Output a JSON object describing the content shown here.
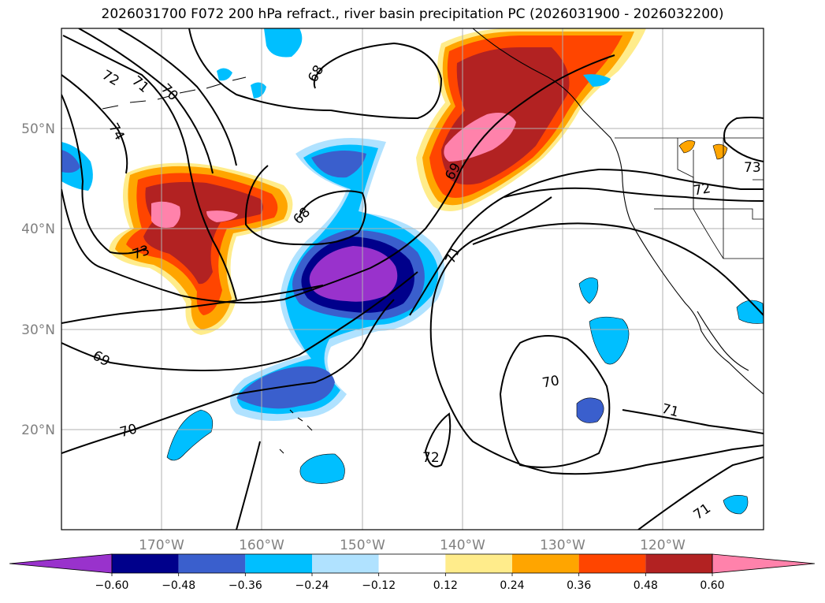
{
  "title": "2026031700 F072 200 hPa refract., river basin precipitation PC (2026031900 - 2026032200)",
  "map": {
    "lon_ticks": [
      "170°W",
      "160°W",
      "150°W",
      "140°W",
      "130°W",
      "120°W"
    ],
    "lat_ticks": [
      "50°N",
      "40°N",
      "30°N",
      "20°N"
    ],
    "contour_labels": [
      "72",
      "71",
      "70",
      "74",
      "73",
      "68",
      "69",
      "71",
      "73",
      "72",
      "69",
      "70",
      "72",
      "70",
      "71",
      "71",
      "68"
    ],
    "tick_color": "#808080",
    "grid_color": "#b0b0b0"
  },
  "colorbar": {
    "tick_labels": [
      "−0.60",
      "−0.48",
      "−0.36",
      "−0.24",
      "−0.12",
      "0.12",
      "0.24",
      "0.36",
      "0.48",
      "0.60"
    ],
    "colors": [
      "#9932cc",
      "#00008b",
      "#3a5fcd",
      "#00bfff",
      "#b0e2ff",
      "#ffffff",
      "#ffec8b",
      "#ffa500",
      "#ff4500",
      "#b22222",
      "#ff82ab"
    ]
  }
}
